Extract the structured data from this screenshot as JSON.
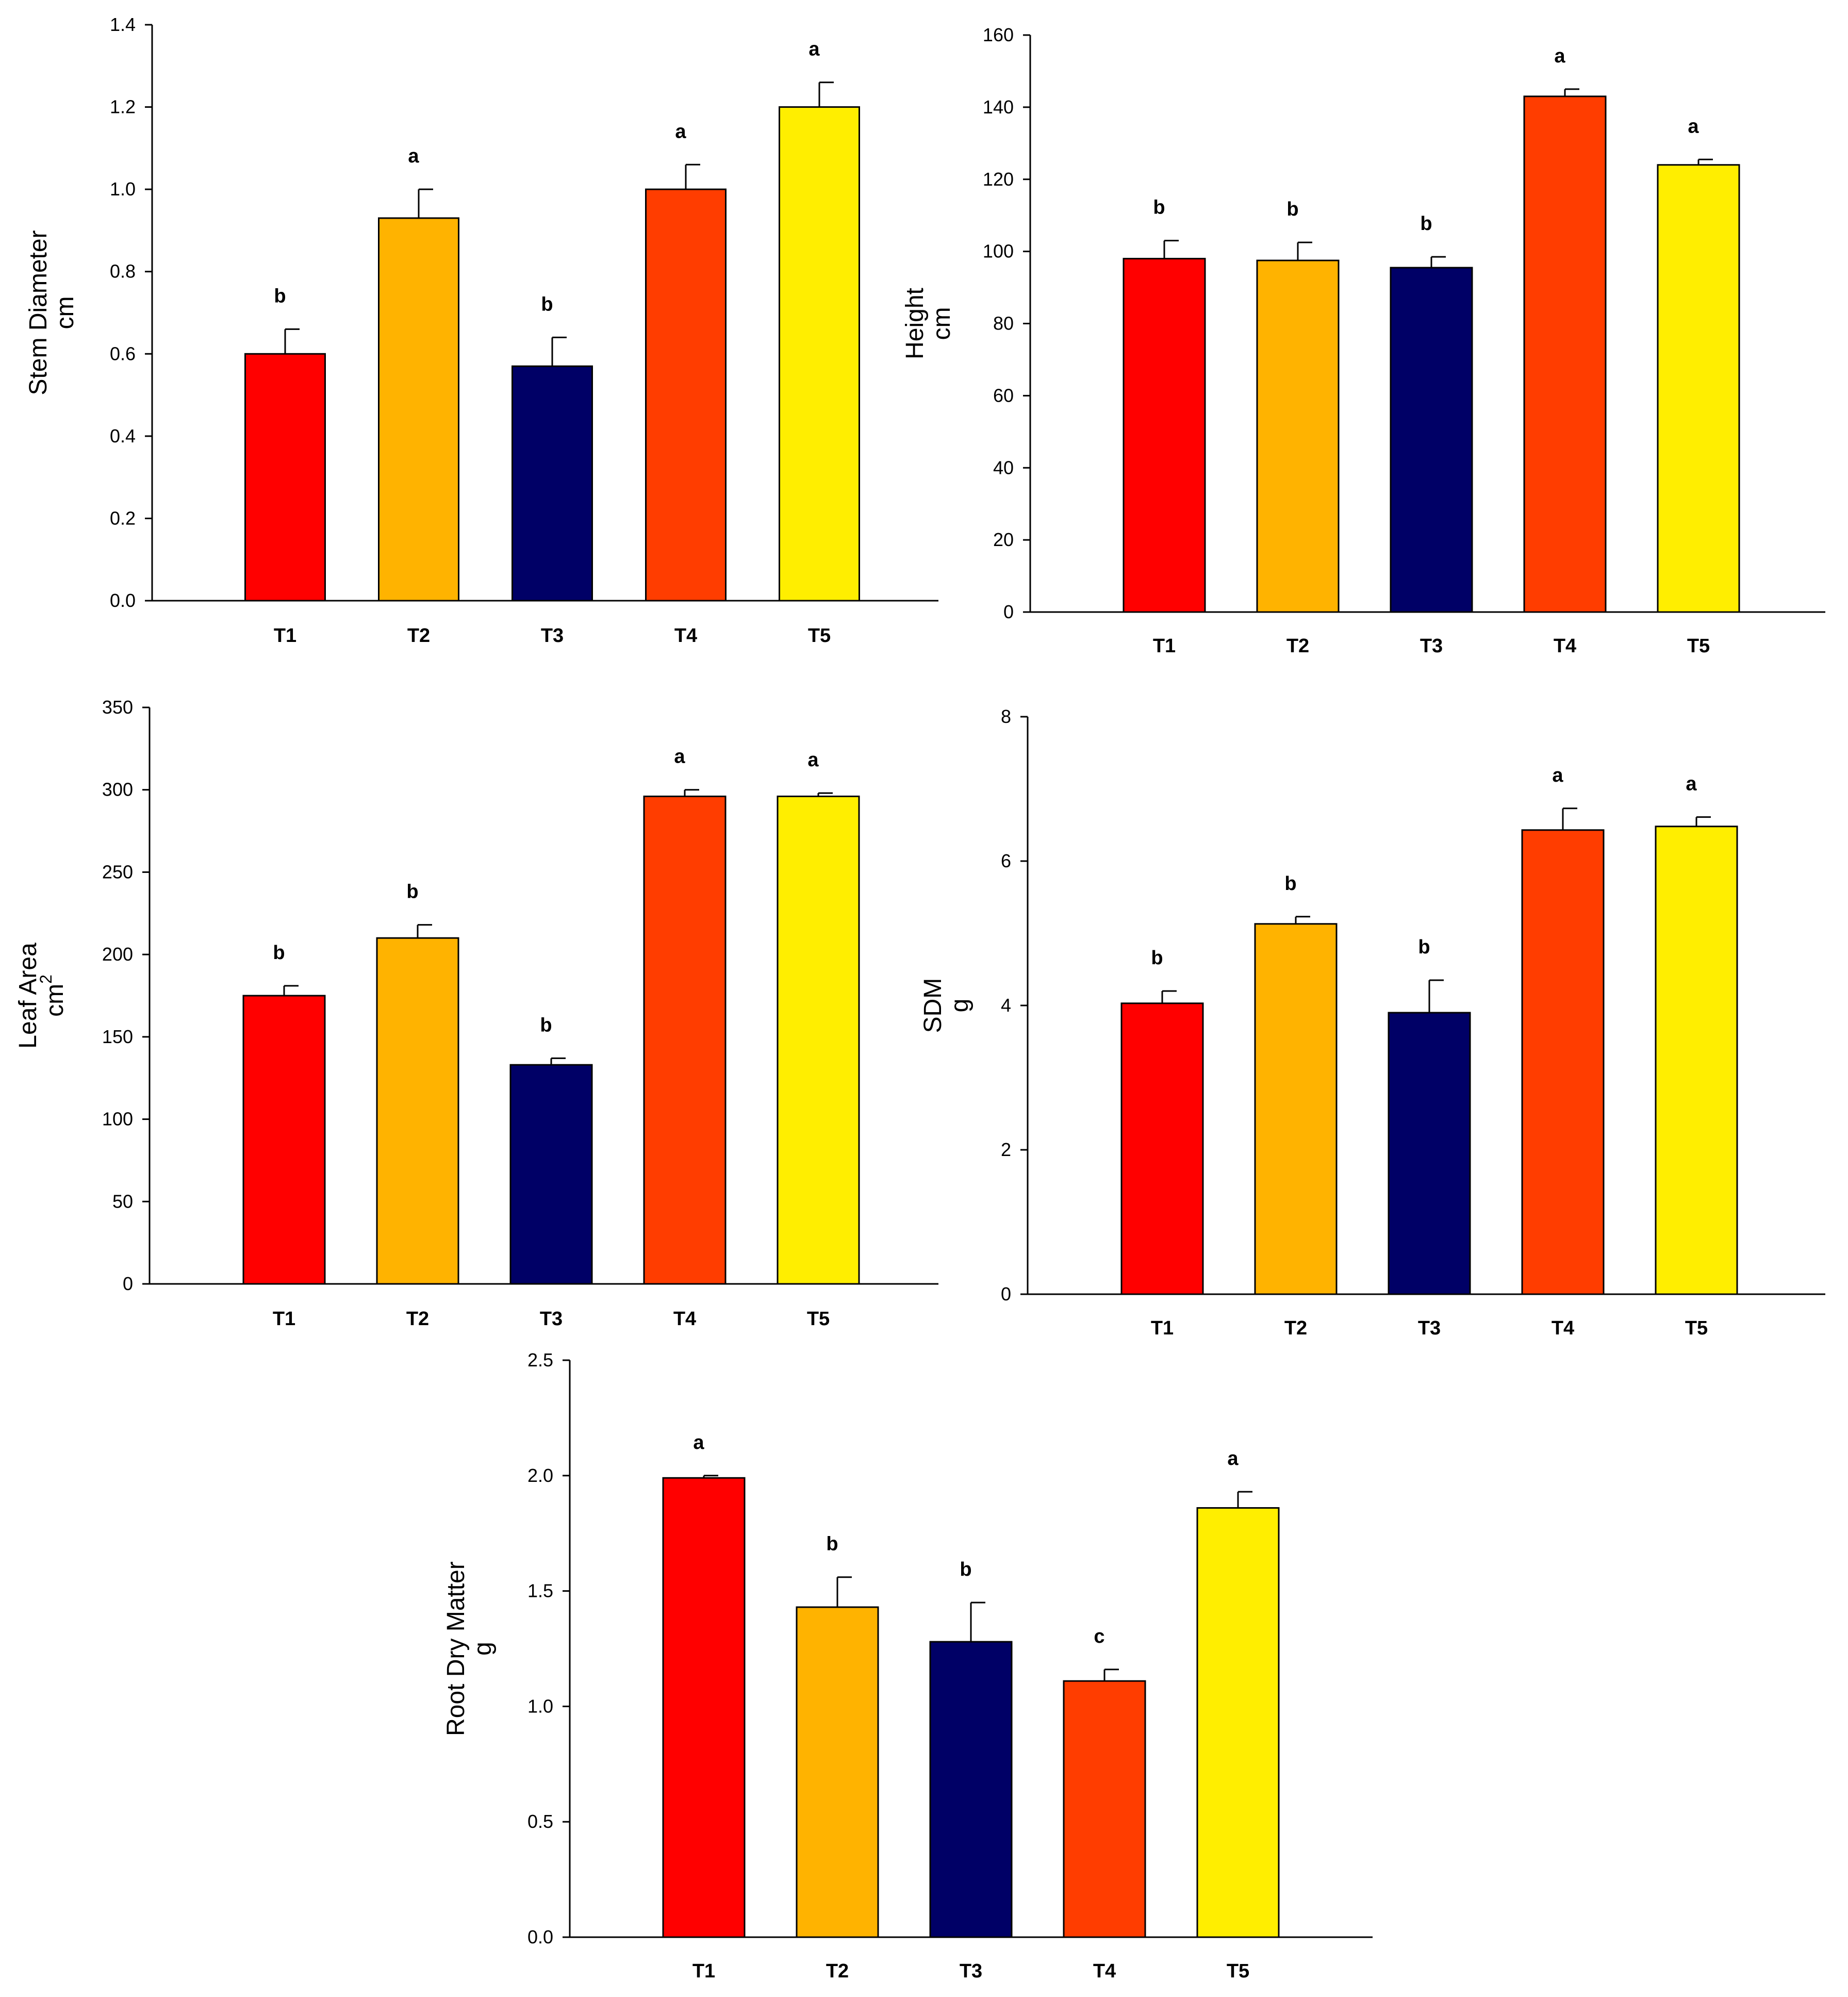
{
  "figure": {
    "description_panels": [
      "stem-diameter",
      "height",
      "leaf-area",
      "sdm",
      "root-dry-matter"
    ]
  },
  "colors": {
    "T1": "#ff0000",
    "T2": "#ffb300",
    "T3": "#000066",
    "T4": "#ff3d00",
    "T5": "#ffee00",
    "axis": "#000000"
  },
  "chart_data": [
    {
      "id": "stem-diameter",
      "type": "bar",
      "title": "",
      "ylabel": [
        "Stem Diameter",
        "cm"
      ],
      "xlabel": "",
      "categories": [
        "T1",
        "T2",
        "T3",
        "T4",
        "T5"
      ],
      "values": [
        0.6,
        0.93,
        0.57,
        1.0,
        1.2
      ],
      "errors": [
        0.06,
        0.07,
        0.07,
        0.06,
        0.06
      ],
      "significance": [
        "b",
        "a",
        "b",
        "a",
        "a"
      ],
      "ylim": [
        0,
        1.4
      ],
      "yticks": [
        0.0,
        0.2,
        0.4,
        0.6,
        0.8,
        1.0,
        1.2,
        1.4
      ],
      "ytick_labels": [
        "0.0",
        "0.2",
        "0.4",
        "0.6",
        "0.8",
        "1.0",
        "1.2",
        "1.4"
      ],
      "bold_categories": false
    },
    {
      "id": "height",
      "type": "bar",
      "title": "",
      "ylabel": [
        "Height",
        "cm"
      ],
      "xlabel": "",
      "categories": [
        "T1",
        "T2",
        "T3",
        "T4",
        "T5"
      ],
      "values": [
        98,
        97.5,
        95.5,
        143,
        124
      ],
      "errors": [
        5,
        5,
        3,
        2,
        1.5
      ],
      "significance": [
        "b",
        "b",
        "b",
        "a",
        "a"
      ],
      "ylim": [
        0,
        160
      ],
      "yticks": [
        0,
        20,
        40,
        60,
        80,
        100,
        120,
        140,
        160
      ],
      "ytick_labels": [
        "0",
        "20",
        "40",
        "60",
        "80",
        "100",
        "120",
        "140",
        "160"
      ],
      "bold_categories": true
    },
    {
      "id": "leaf-area",
      "type": "bar",
      "title": "",
      "ylabel": [
        "Leaf Area",
        "cm",
        "2"
      ],
      "xlabel": "",
      "categories": [
        "T1",
        "T2",
        "T3",
        "T4",
        "T5"
      ],
      "values": [
        175,
        210,
        133,
        296,
        296
      ],
      "errors": [
        6,
        8,
        4,
        4,
        2
      ],
      "significance": [
        "b",
        "b",
        "b",
        "a",
        "a"
      ],
      "ylim": [
        0,
        350
      ],
      "yticks": [
        0,
        50,
        100,
        150,
        200,
        250,
        300,
        350
      ],
      "ytick_labels": [
        "0",
        "50",
        "100",
        "150",
        "200",
        "250",
        "300",
        "350"
      ],
      "bold_categories": true
    },
    {
      "id": "sdm",
      "type": "bar",
      "title": "",
      "ylabel": [
        "SDM",
        "g"
      ],
      "xlabel": "",
      "categories": [
        "T1",
        "T2",
        "T3",
        "T4",
        "T5"
      ],
      "values": [
        4.03,
        5.13,
        3.9,
        6.43,
        6.48
      ],
      "errors": [
        0.17,
        0.1,
        0.45,
        0.3,
        0.13
      ],
      "significance": [
        "b",
        "b",
        "b",
        "a",
        "a"
      ],
      "ylim": [
        0,
        8
      ],
      "yticks": [
        0,
        2,
        4,
        6,
        8
      ],
      "ytick_labels": [
        "0",
        "2",
        "4",
        "6",
        "8"
      ],
      "bold_categories": true
    },
    {
      "id": "root-dry-matter",
      "type": "bar",
      "title": "",
      "ylabel": [
        "Root Dry Matter",
        "g"
      ],
      "xlabel": "",
      "categories": [
        "T1",
        "T2",
        "T3",
        "T4",
        "T5"
      ],
      "values": [
        1.99,
        1.43,
        1.28,
        1.11,
        1.86
      ],
      "errors": [
        0.01,
        0.13,
        0.17,
        0.05,
        0.07
      ],
      "significance": [
        "a",
        "b",
        "b",
        "c",
        "a"
      ],
      "ylim": [
        0,
        2.5
      ],
      "yticks": [
        0.0,
        0.5,
        1.0,
        1.5,
        2.0,
        2.5
      ],
      "ytick_labels": [
        "0.0",
        "0.5",
        "1.0",
        "1.5",
        "2.0",
        "2.5"
      ],
      "bold_categories": true
    }
  ]
}
